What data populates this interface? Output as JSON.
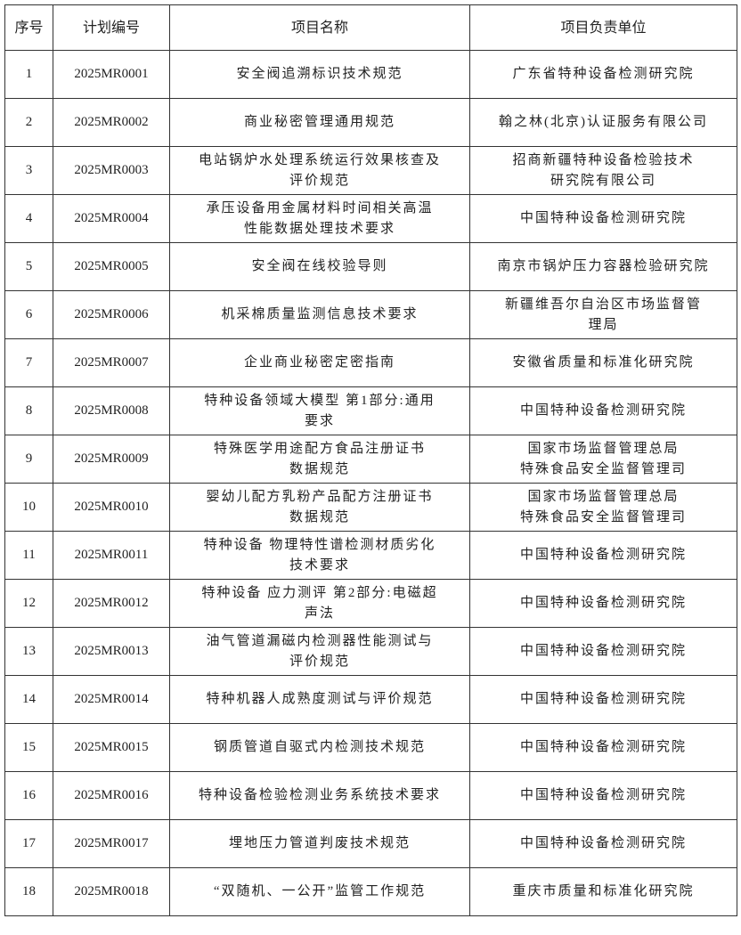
{
  "headers": [
    "序号",
    "计划编号",
    "项目名称",
    "项目负责单位"
  ],
  "rows": [
    {
      "no": "1",
      "code": "2025MR0001",
      "name": [
        "安全阀追溯标识技术规范"
      ],
      "unit": [
        "广东省特种设备检测研究院"
      ]
    },
    {
      "no": "2",
      "code": "2025MR0002",
      "name": [
        "商业秘密管理通用规范"
      ],
      "unit": [
        "翰之林(北京)认证服务有限公司"
      ]
    },
    {
      "no": "3",
      "code": "2025MR0003",
      "name": [
        "电站锅炉水处理系统运行效果核查及",
        "评价规范"
      ],
      "unit": [
        "招商新疆特种设备检验技术",
        "研究院有限公司"
      ]
    },
    {
      "no": "4",
      "code": "2025MR0004",
      "name": [
        "承压设备用金属材料时间相关高温",
        "性能数据处理技术要求"
      ],
      "unit": [
        "中国特种设备检测研究院"
      ]
    },
    {
      "no": "5",
      "code": "2025MR0005",
      "name": [
        "安全阀在线校验导则"
      ],
      "unit": [
        "南京市锅炉压力容器检验研究院"
      ]
    },
    {
      "no": "6",
      "code": "2025MR0006",
      "name": [
        "机采棉质量监测信息技术要求"
      ],
      "unit": [
        "新疆维吾尔自治区市场监督管",
        "理局"
      ]
    },
    {
      "no": "7",
      "code": "2025MR0007",
      "name": [
        "企业商业秘密定密指南"
      ],
      "unit": [
        "安徽省质量和标准化研究院"
      ]
    },
    {
      "no": "8",
      "code": "2025MR0008",
      "name": [
        "特种设备领域大模型 第1部分:通用",
        "要求"
      ],
      "unit": [
        "中国特种设备检测研究院"
      ]
    },
    {
      "no": "9",
      "code": "2025MR0009",
      "name": [
        "特殊医学用途配方食品注册证书",
        "数据规范"
      ],
      "unit": [
        "国家市场监督管理总局",
        "特殊食品安全监督管理司"
      ]
    },
    {
      "no": "10",
      "code": "2025MR0010",
      "name": [
        "婴幼儿配方乳粉产品配方注册证书",
        "数据规范"
      ],
      "unit": [
        "国家市场监督管理总局",
        "特殊食品安全监督管理司"
      ]
    },
    {
      "no": "11",
      "code": "2025MR0011",
      "name": [
        "特种设备 物理特性谱检测材质劣化",
        "技术要求"
      ],
      "unit": [
        "中国特种设备检测研究院"
      ]
    },
    {
      "no": "12",
      "code": "2025MR0012",
      "name": [
        "特种设备 应力测评 第2部分:电磁超",
        "声法"
      ],
      "unit": [
        "中国特种设备检测研究院"
      ]
    },
    {
      "no": "13",
      "code": "2025MR0013",
      "name": [
        "油气管道漏磁内检测器性能测试与",
        "评价规范"
      ],
      "unit": [
        "中国特种设备检测研究院"
      ]
    },
    {
      "no": "14",
      "code": "2025MR0014",
      "name": [
        "特种机器人成熟度测试与评价规范"
      ],
      "unit": [
        "中国特种设备检测研究院"
      ]
    },
    {
      "no": "15",
      "code": "2025MR0015",
      "name": [
        "钢质管道自驱式内检测技术规范"
      ],
      "unit": [
        "中国特种设备检测研究院"
      ]
    },
    {
      "no": "16",
      "code": "2025MR0016",
      "name": [
        "特种设备检验检测业务系统技术要求"
      ],
      "unit": [
        "中国特种设备检测研究院"
      ]
    },
    {
      "no": "17",
      "code": "2025MR0017",
      "name": [
        "埋地压力管道判废技术规范"
      ],
      "unit": [
        "中国特种设备检测研究院"
      ]
    },
    {
      "no": "18",
      "code": "2025MR0018",
      "name": [
        "“双随机、一公开”监管工作规范"
      ],
      "unit": [
        "重庆市质量和标准化研究院"
      ]
    }
  ]
}
